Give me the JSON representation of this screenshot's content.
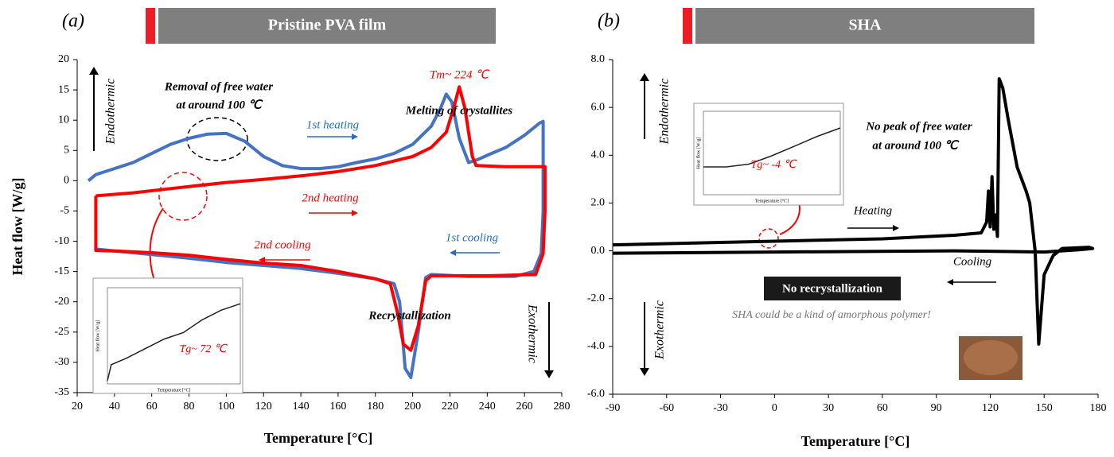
{
  "chart_data": [
    {
      "type": "line",
      "label": "(a)",
      "title": "Pristine PVA film",
      "x_label": "Temperature [°C]",
      "y_label": "Heat flow [W/g]",
      "xlim": [
        20,
        280
      ],
      "xticks": [
        20,
        40,
        60,
        80,
        100,
        120,
        140,
        160,
        180,
        200,
        220,
        240,
        260,
        280
      ],
      "ylim": [
        -35,
        20
      ],
      "yticks": [
        -35,
        -30,
        -25,
        -20,
        -15,
        -10,
        -5,
        0,
        5,
        10,
        15,
        20
      ],
      "series": [
        {
          "color": "#4472c4",
          "x": [
            26,
            30,
            40,
            50,
            60,
            70,
            80,
            90,
            100,
            110,
            120,
            130,
            140,
            150,
            160,
            170,
            180,
            190,
            200,
            210,
            215,
            218,
            221,
            225,
            230,
            235,
            240,
            250,
            260,
            268,
            270,
            270,
            269,
            265,
            255,
            230,
            210,
            207,
            203,
            199,
            196,
            193,
            190,
            180,
            160,
            140,
            120,
            100,
            80,
            60,
            40,
            30
          ],
          "values": [
            0,
            1,
            2,
            3,
            4.5,
            6,
            7,
            7.7,
            7.8,
            6.5,
            4,
            2.5,
            2,
            2,
            2.3,
            3,
            3.6,
            4.5,
            6,
            9,
            12,
            14.3,
            13,
            7,
            3,
            3.5,
            4.2,
            5.5,
            7.5,
            9.5,
            9.8,
            -5,
            -12,
            -15,
            -15.8,
            -15.8,
            -15.5,
            -16,
            -25,
            -32.5,
            -31,
            -20,
            -17,
            -16.2,
            -15.3,
            -14.5,
            -14,
            -13.5,
            -12.8,
            -12.2,
            -11.6,
            -11.3
          ]
        },
        {
          "color": "#ff0000",
          "x": [
            30,
            50,
            70,
            100,
            120,
            140,
            160,
            180,
            200,
            210,
            218,
            222,
            225,
            228,
            232,
            234,
            250,
            271,
            271,
            270,
            266,
            240,
            210,
            207,
            203,
            199,
            195,
            192,
            188,
            180,
            160,
            140,
            120,
            100,
            80,
            60,
            40,
            30,
            30
          ],
          "values": [
            -2.5,
            -2,
            -1.3,
            -0.3,
            0.2,
            0.8,
            1.5,
            2.5,
            4,
            5.5,
            8,
            12,
            15.5,
            12,
            4,
            2.5,
            2.3,
            2.3,
            -5,
            -12,
            -15.5,
            -15.7,
            -15.7,
            -16.5,
            -24,
            -28,
            -27,
            -22,
            -17,
            -16.2,
            -15,
            -14,
            -13.6,
            -13,
            -12.3,
            -11.9,
            -11.6,
            -11.5,
            -2.5
          ]
        }
      ],
      "annotations": [
        "Endothermic",
        "Exothermic",
        "Removal of free water",
        "at around 100 ℃",
        "Tm~ 224 ℃",
        "Melting of crystallites",
        "1st heating",
        "2nd heating",
        "2nd cooling",
        "1st cooling",
        "Recrystallization",
        "Tg~ 72 ℃"
      ],
      "inset": {
        "x_label": "Temperature [°C]",
        "y_label": "Heat flow [W/g]",
        "xlim": [
          30,
          100
        ],
        "ylim": [
          -3,
          0
        ],
        "x": [
          30,
          32,
          40,
          50,
          60,
          70,
          80,
          90,
          100
        ],
        "values": [
          -2.9,
          -2.4,
          -2.2,
          -1.9,
          -1.6,
          -1.4,
          -1.0,
          -0.7,
          -0.5
        ]
      }
    },
    {
      "type": "line",
      "label": "(b)",
      "title": "SHA",
      "x_label": "Temperature [°C]",
      "xlim": [
        -90,
        180
      ],
      "xticks": [
        -90,
        -60,
        -30,
        0,
        30,
        60,
        90,
        120,
        150,
        180
      ],
      "ylim": [
        -6,
        8
      ],
      "yticks": [
        {
          "value": -6,
          "label": "-6.0"
        },
        {
          "value": -4,
          "label": "-4.0"
        },
        {
          "value": -2,
          "label": "-2.0"
        },
        {
          "value": 0,
          "label": "0.0"
        },
        {
          "value": 2,
          "label": "2.0"
        },
        {
          "value": 4,
          "label": "4.0"
        },
        {
          "value": 6,
          "label": "6.0"
        },
        {
          "value": 8,
          "label": "8.0"
        }
      ],
      "series": [
        {
          "color": "#000000",
          "x": [
            -90,
            0,
            60,
            100,
            115,
            118,
            119,
            120,
            121,
            122,
            123,
            124,
            125,
            127,
            130,
            135,
            140,
            142,
            145,
            147,
            150,
            155,
            160,
            175,
            177,
            170,
            150,
            100,
            0,
            -90
          ],
          "values": [
            0.25,
            0.4,
            0.5,
            0.65,
            0.75,
            1.2,
            2.5,
            1.0,
            3.1,
            0.9,
            1.5,
            0.6,
            7.2,
            6.8,
            5.5,
            3.5,
            2.5,
            2,
            0,
            -3.9,
            -1,
            -0.2,
            0.1,
            0.15,
            0.1,
            0.05,
            -0.05,
            0,
            -0.05,
            -0.1
          ]
        }
      ],
      "annotations": [
        "Endothermic",
        "Exothermic",
        "No peak of free water",
        "at around 100 ℃",
        "Heating",
        "Cooling",
        "No recrystallization",
        "SHA could be a kind of amorphous polymer!",
        "Tg~ -4 ℃"
      ],
      "inset": {
        "x_label": "Temperature [°C]",
        "y_label": "Heat flow [W/g]",
        "xlim": [
          -50,
          10
        ],
        "ylim": [
          -0.2,
          0.4
        ],
        "x": [
          -50,
          -40,
          -30,
          -20,
          -10,
          0,
          10
        ],
        "values": [
          0,
          0,
          0.02,
          0.08,
          0.15,
          0.22,
          0.28
        ]
      }
    }
  ]
}
